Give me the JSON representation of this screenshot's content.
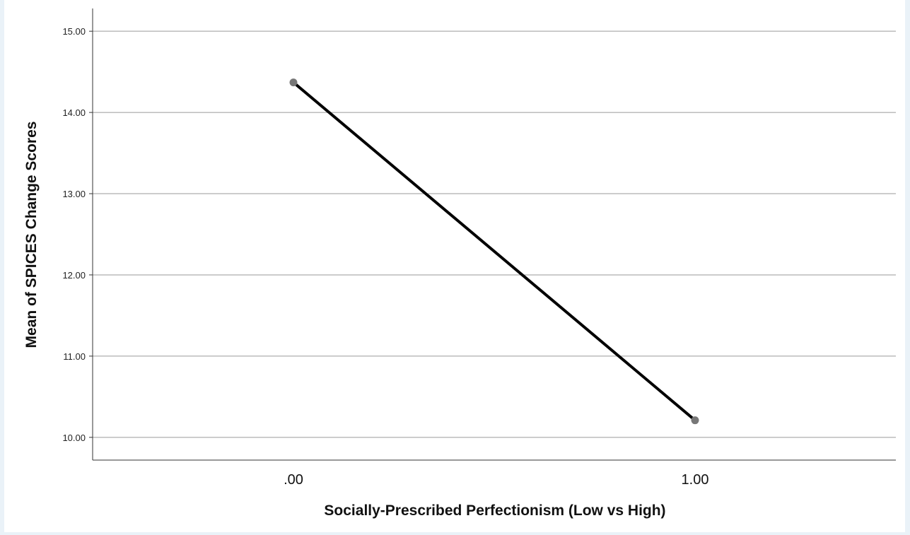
{
  "chart_data": {
    "type": "line",
    "title": "",
    "xlabel": "Socially-Prescribed Perfectionism (Low vs High)",
    "ylabel": "Mean of SPICES Change Scores",
    "categories": [
      ".00",
      "1.00"
    ],
    "series": [
      {
        "values": [
          14.37,
          10.21
        ]
      }
    ],
    "ylim": [
      9.72,
      15.28
    ],
    "yticks": [
      "10.00",
      "11.00",
      "12.00",
      "13.00",
      "14.00",
      "15.00"
    ],
    "ytick_values": [
      10,
      11,
      12,
      13,
      14,
      15
    ],
    "grid": true,
    "legend": "none",
    "colors": {
      "line": "#000000",
      "marker": "#777777",
      "grid": "#9a9a9a",
      "axis": "#333333"
    }
  }
}
